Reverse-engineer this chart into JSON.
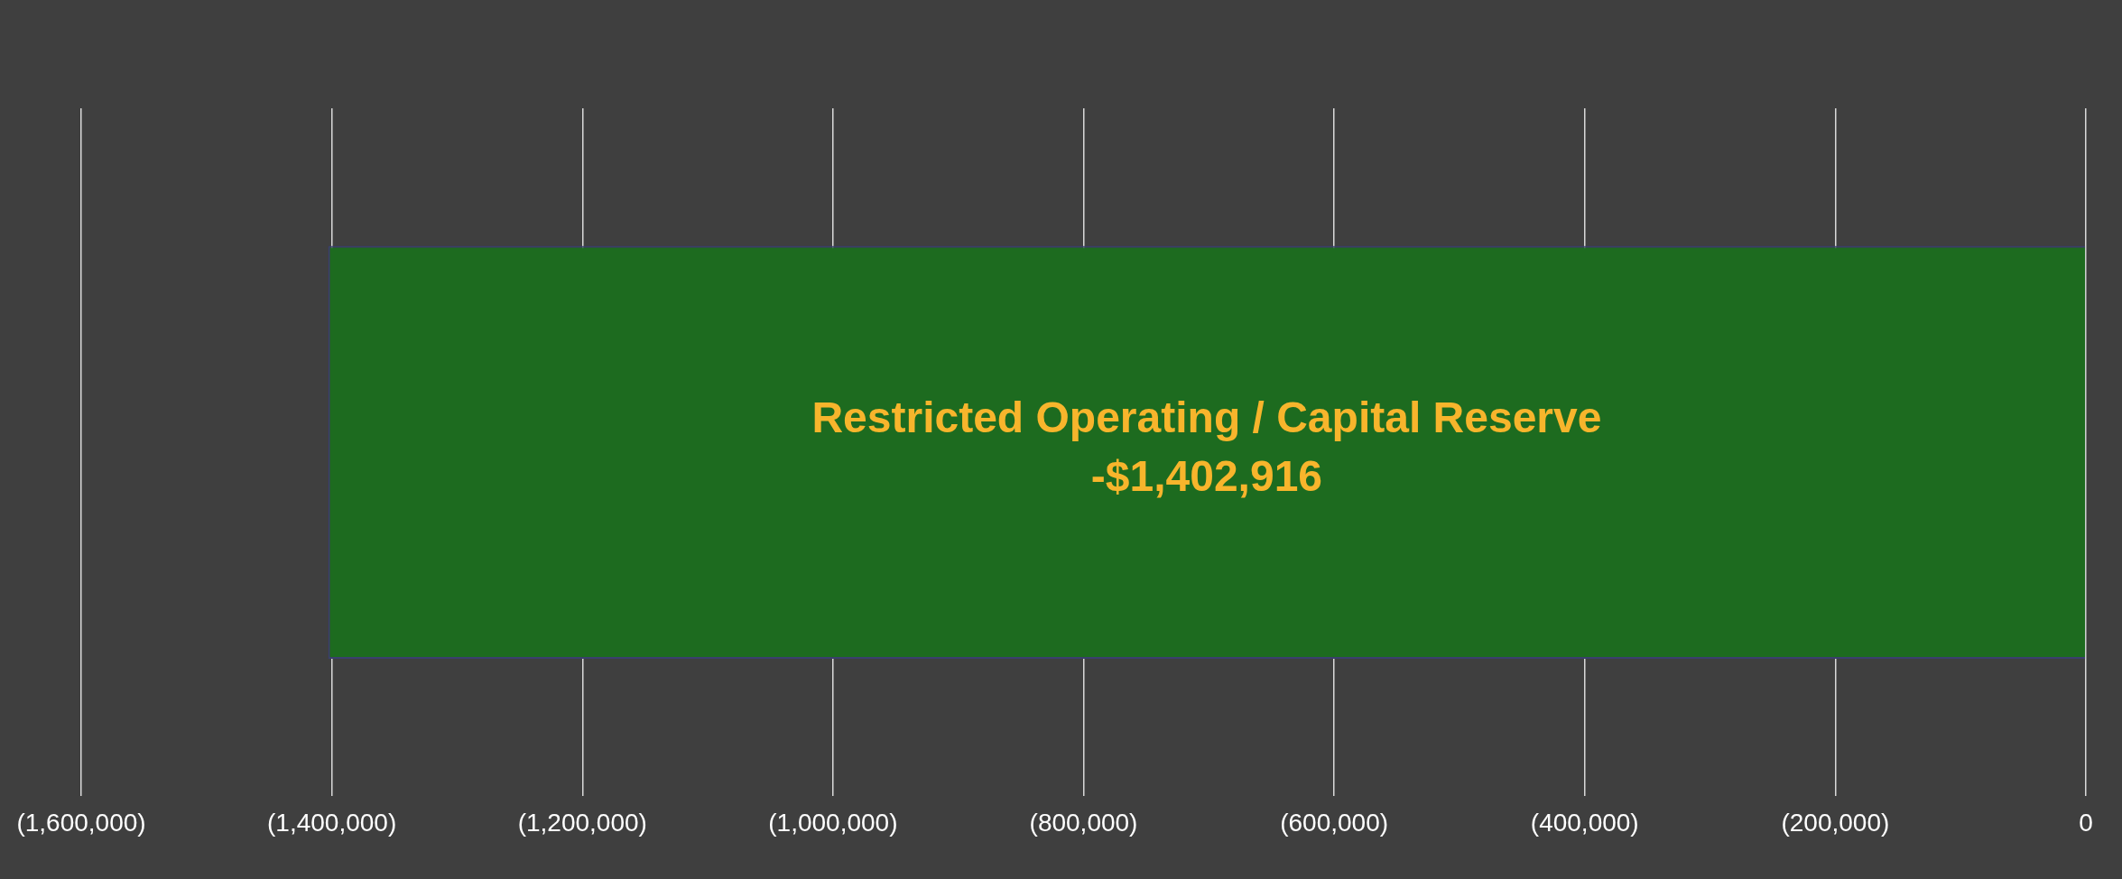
{
  "chart_data": {
    "type": "bar",
    "orientation": "horizontal",
    "categories": [
      "Restricted Operating / Capital Reserve"
    ],
    "values": [
      -1402916
    ],
    "color": "#1d6b1f",
    "value_labels": [
      "-$1,402,916"
    ],
    "xlim": [
      -1600000,
      0
    ],
    "xticks": [
      {
        "value": -1600000,
        "label": "(1,600,000)"
      },
      {
        "value": -1400000,
        "label": "(1,400,000)"
      },
      {
        "value": -1200000,
        "label": "(1,200,000)"
      },
      {
        "value": -1000000,
        "label": "(1,000,000)"
      },
      {
        "value": -800000,
        "label": "(800,000)"
      },
      {
        "value": -600000,
        "label": "(600,000)"
      },
      {
        "value": -400000,
        "label": "(400,000)"
      },
      {
        "value": -200000,
        "label": "(200,000)"
      },
      0
    ],
    "grid": "x",
    "legend": false
  }
}
